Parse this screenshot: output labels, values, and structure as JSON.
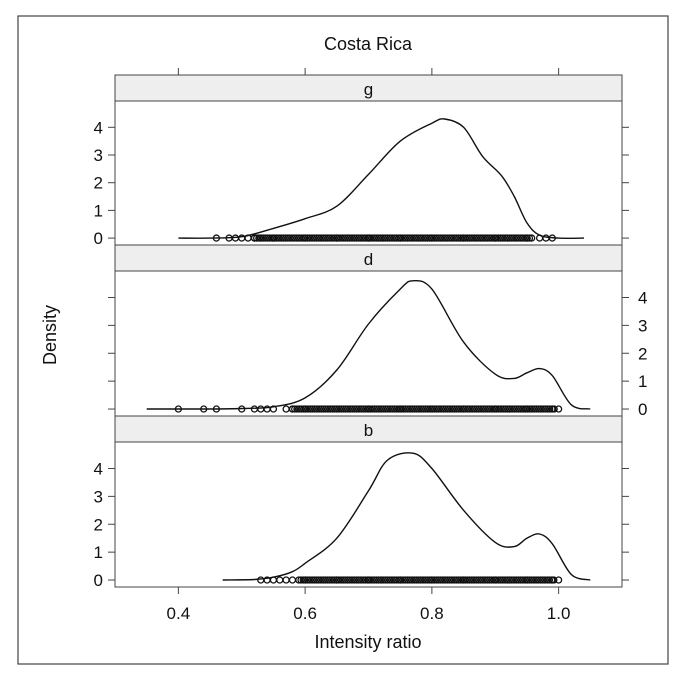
{
  "chart_data": {
    "type": "line",
    "title": "Costa Rica",
    "xlabel": "Intensity ratio",
    "ylabel": "Density",
    "xlim": [
      0.3,
      1.1
    ],
    "ylim": [
      -0.25,
      4.95
    ],
    "x_ticks": [
      0.4,
      0.6,
      0.8,
      1.0
    ],
    "x_tick_labels": [
      "0.4",
      "0.6",
      "0.8",
      "1.0"
    ],
    "y_ticks": [
      0,
      1,
      2,
      3,
      4
    ],
    "y_tick_labels": [
      "0",
      "1",
      "2",
      "3",
      "4"
    ],
    "panels": [
      {
        "strip": "g",
        "density_curve": {
          "x": [
            0.4,
            0.45,
            0.5,
            0.55,
            0.6,
            0.65,
            0.7,
            0.75,
            0.8,
            0.82,
            0.85,
            0.88,
            0.91,
            0.93,
            0.95,
            0.97,
            1.0,
            1.04
          ],
          "y": [
            0.0,
            0.0,
            0.05,
            0.35,
            0.7,
            1.15,
            2.3,
            3.5,
            4.15,
            4.3,
            4.0,
            2.95,
            2.25,
            1.5,
            0.55,
            0.1,
            0.0,
            0.0
          ]
        },
        "rug": [
          0.46,
          0.48,
          0.49,
          0.5,
          0.51,
          0.52,
          0.53,
          0.55,
          0.6,
          0.65,
          0.7,
          0.75,
          0.8,
          0.85,
          0.9,
          0.95,
          0.97,
          0.98,
          0.99
        ]
      },
      {
        "strip": "d",
        "density_curve": {
          "x": [
            0.35,
            0.4,
            0.45,
            0.5,
            0.55,
            0.6,
            0.65,
            0.7,
            0.75,
            0.77,
            0.8,
            0.85,
            0.9,
            0.93,
            0.95,
            0.97,
            0.99,
            1.02,
            1.05
          ],
          "y": [
            0.0,
            0.0,
            0.0,
            0.02,
            0.08,
            0.4,
            1.4,
            3.05,
            4.3,
            4.6,
            4.3,
            2.4,
            1.25,
            1.1,
            1.3,
            1.45,
            1.2,
            0.15,
            0.0
          ]
        },
        "rug": [
          0.4,
          0.44,
          0.46,
          0.5,
          0.52,
          0.53,
          0.54,
          0.55,
          0.57,
          0.58,
          0.6,
          0.65,
          0.7,
          0.75,
          0.8,
          0.85,
          0.9,
          0.95,
          0.99,
          1.0
        ]
      },
      {
        "strip": "b",
        "density_curve": {
          "x": [
            0.47,
            0.52,
            0.55,
            0.58,
            0.6,
            0.65,
            0.7,
            0.73,
            0.77,
            0.8,
            0.85,
            0.9,
            0.93,
            0.95,
            0.97,
            0.99,
            1.02,
            1.05
          ],
          "y": [
            0.0,
            0.02,
            0.1,
            0.3,
            0.6,
            1.5,
            3.2,
            4.3,
            4.55,
            4.0,
            2.5,
            1.35,
            1.2,
            1.5,
            1.65,
            1.3,
            0.2,
            0.0
          ]
        },
        "rug": [
          0.53,
          0.54,
          0.55,
          0.56,
          0.57,
          0.58,
          0.6,
          0.65,
          0.7,
          0.75,
          0.8,
          0.85,
          0.9,
          0.95,
          0.99,
          1.0
        ]
      }
    ],
    "grid": false,
    "legend": "none"
  },
  "colors": {
    "line": "#111111",
    "strip_fill": "#eeeeee",
    "frame": "#444444"
  }
}
